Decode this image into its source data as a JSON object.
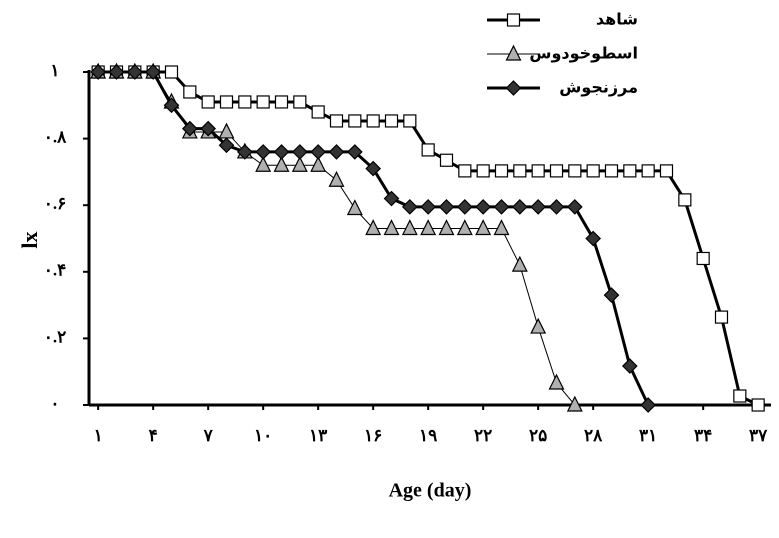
{
  "chart_data": {
    "type": "line",
    "x_label": "Age (day)",
    "y_label": "lx",
    "x": [
      1,
      2,
      3,
      4,
      5,
      6,
      7,
      8,
      9,
      10,
      11,
      12,
      13,
      14,
      15,
      16,
      17,
      18,
      19,
      20,
      21,
      22,
      23,
      24,
      25,
      26,
      27,
      28,
      29,
      30,
      31,
      32,
      33,
      34,
      35,
      36,
      37
    ],
    "xlim": [
      0.5,
      37.7
    ],
    "xticks": [
      {
        "value": 1,
        "label": "۱"
      },
      {
        "value": 4,
        "label": "۴"
      },
      {
        "value": 7,
        "label": "۷"
      },
      {
        "value": 10,
        "label": "۱۰"
      },
      {
        "value": 13,
        "label": "۱۳"
      },
      {
        "value": 16,
        "label": "۱۶"
      },
      {
        "value": 19,
        "label": "۱۹"
      },
      {
        "value": 22,
        "label": "۲۲"
      },
      {
        "value": 25,
        "label": "۲۵"
      },
      {
        "value": 28,
        "label": "۲۸"
      },
      {
        "value": 31,
        "label": "۳۱"
      },
      {
        "value": 34,
        "label": "۳۴"
      },
      {
        "value": 37,
        "label": "۳۷"
      }
    ],
    "ylim": [
      0,
      1
    ],
    "yticks": [
      {
        "value": 0,
        "label": "۰"
      },
      {
        "value": 0.2,
        "label": "۰.۲"
      },
      {
        "value": 0.4,
        "label": "۰.۴"
      },
      {
        "value": 0.6,
        "label": "۰.۶"
      },
      {
        "value": 0.8,
        "label": "۰.۸"
      },
      {
        "value": 1,
        "label": "۱"
      }
    ],
    "legend": "top-right",
    "series": [
      {
        "name": "شاهد",
        "color": "#000000",
        "marker": "square",
        "marker_fill": "#ffffff",
        "line_width": 3,
        "values": [
          1,
          1,
          1,
          1,
          1,
          0.94,
          0.91,
          0.91,
          0.91,
          0.91,
          0.91,
          0.91,
          0.88,
          0.853,
          0.853,
          0.853,
          0.853,
          0.853,
          0.766,
          0.735,
          0.703,
          0.703,
          0.703,
          0.703,
          0.703,
          0.703,
          0.703,
          0.703,
          0.703,
          0.703,
          0.703,
          0.703,
          0.616,
          0.44,
          0.264,
          0.027,
          0
        ]
      },
      {
        "name": "اسطوخودوس",
        "color": "#000000",
        "marker": "triangle",
        "marker_fill": "#b0b0b0",
        "line_width": 1,
        "values": [
          1,
          1,
          1,
          1,
          0.91,
          0.82,
          0.82,
          0.82,
          0.76,
          0.72,
          0.72,
          0.72,
          0.72,
          0.675,
          0.59,
          0.53,
          0.53,
          0.53,
          0.53,
          0.53,
          0.53,
          0.53,
          0.53,
          0.42,
          0.234,
          0.066,
          0,
          null,
          null,
          null,
          null,
          null,
          null,
          null,
          null,
          null,
          null
        ]
      },
      {
        "name": "مرزنجوش",
        "color": "#000000",
        "marker": "diamond",
        "marker_fill": "#333333",
        "line_width": 3,
        "values": [
          1,
          1,
          1,
          1,
          0.9,
          0.83,
          0.83,
          0.78,
          0.76,
          0.76,
          0.76,
          0.76,
          0.76,
          0.76,
          0.76,
          0.71,
          0.62,
          0.595,
          0.595,
          0.595,
          0.595,
          0.595,
          0.595,
          0.595,
          0.595,
          0.595,
          0.595,
          0.5,
          0.33,
          0.117,
          0,
          null,
          null,
          null,
          null,
          null,
          null
        ]
      }
    ]
  }
}
